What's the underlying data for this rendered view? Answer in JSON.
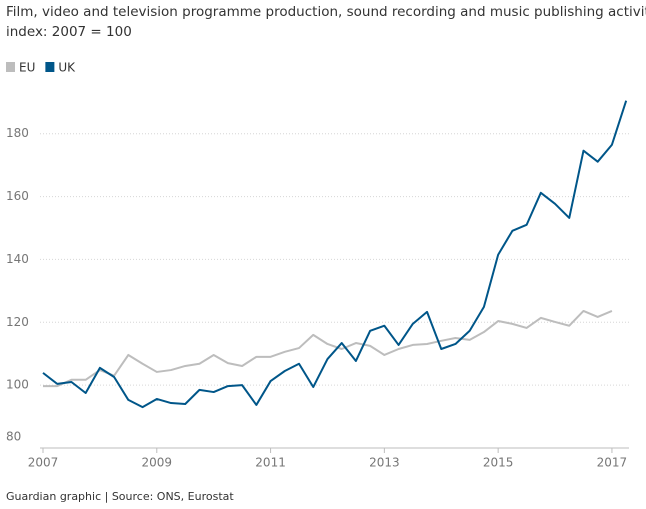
{
  "chart_data": {
    "type": "line",
    "title": [
      "Film, video and television programme production, sound recording and music publishing activities,",
      "index: 2007 = 100"
    ],
    "source": "Guardian graphic | Source: ONS, Eurostat",
    "x": [
      2007,
      2007.25,
      2007.5,
      2007.75,
      2008,
      2008.25,
      2008.5,
      2008.75,
      2009,
      2009.25,
      2009.5,
      2009.75,
      2010,
      2010.25,
      2010.5,
      2010.75,
      2011,
      2011.25,
      2011.5,
      2011.75,
      2012,
      2012.25,
      2012.5,
      2012.75,
      2013,
      2013.25,
      2013.5,
      2013.75,
      2014,
      2014.25,
      2014.5,
      2014.75,
      2015,
      2015.25,
      2015.5,
      2015.75,
      2016,
      2016.25,
      2016.5,
      2016.75,
      2017,
      2017.25
    ],
    "series": [
      {
        "name": "EU",
        "color": "#bdbdbd",
        "values": [
          99.7,
          99.7,
          101.7,
          101.7,
          104.8,
          103,
          109.6,
          106.8,
          104.2,
          104.8,
          106.1,
          106.8,
          109.6,
          107,
          106.1,
          109,
          109,
          110.6,
          111.8,
          116,
          113.1,
          111.5,
          113.4,
          112.5,
          109.6,
          111.5,
          112.8,
          113.1,
          114.1,
          115,
          114.4,
          116.9,
          120.4,
          119.5,
          118.2,
          121.4,
          120.1,
          118.9,
          123.6,
          121.7,
          123.6,
          null
        ]
      },
      {
        "name": "UK",
        "color": "#005689",
        "values": [
          103.9,
          100.4,
          101,
          97.5,
          105.5,
          102.6,
          95.3,
          93,
          95.6,
          94.3,
          94,
          98.5,
          97.8,
          99.7,
          100,
          93.7,
          101.3,
          104.5,
          106.8,
          99.4,
          108.3,
          113.4,
          107.7,
          117.3,
          118.9,
          112.8,
          119.5,
          123.3,
          111.5,
          113.1,
          117.3,
          124.9,
          141.5,
          149.1,
          151,
          161.2,
          157.7,
          153.2,
          174.6,
          171.1,
          176.5,
          190.5
        ]
      }
    ],
    "xlim": [
      2007,
      2017.3
    ],
    "xticks": [
      2007,
      2009,
      2011,
      2013,
      2015,
      2017
    ],
    "ylim": [
      80,
      192
    ],
    "yticks": [
      80,
      100,
      120,
      140,
      160,
      180
    ],
    "grid": true
  }
}
